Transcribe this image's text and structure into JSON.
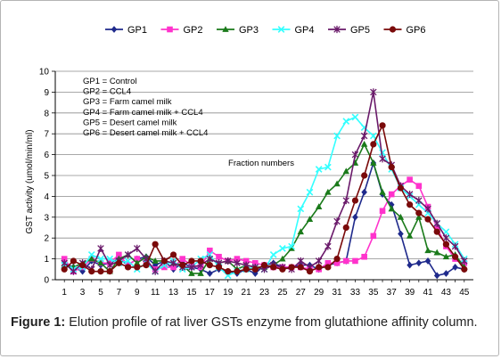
{
  "chart_data": {
    "type": "line",
    "ylabel": "GST activity (umol/min/ml)",
    "xlabel": "Fraction numbers",
    "ylim": [
      0,
      10
    ],
    "yticks": [
      0,
      1,
      2,
      3,
      4,
      5,
      6,
      7,
      8,
      9,
      10
    ],
    "xticks": [
      1,
      3,
      5,
      7,
      9,
      11,
      13,
      15,
      17,
      19,
      21,
      23,
      25,
      27,
      29,
      31,
      33,
      35,
      37,
      39,
      41,
      43,
      45
    ],
    "x": [
      1,
      2,
      3,
      4,
      5,
      6,
      7,
      8,
      9,
      10,
      11,
      12,
      13,
      14,
      15,
      16,
      17,
      18,
      19,
      20,
      21,
      22,
      23,
      24,
      25,
      26,
      27,
      28,
      29,
      30,
      31,
      32,
      33,
      34,
      35,
      36,
      37,
      38,
      39,
      40,
      41,
      42,
      43,
      44,
      45
    ],
    "legend_position": "top",
    "series": [
      {
        "name": "GP1",
        "color": "#1f2a8c",
        "marker": "diamond",
        "values": [
          0.8,
          0.6,
          0.4,
          0.9,
          0.7,
          0.8,
          1.0,
          0.7,
          1.0,
          1.1,
          0.7,
          0.9,
          0.5,
          0.8,
          0.6,
          0.5,
          0.3,
          0.5,
          0.4,
          0.3,
          0.5,
          0.3,
          0.7,
          0.8,
          0.6,
          0.6,
          0.7,
          0.7,
          0.5,
          0.7,
          0.8,
          0.9,
          3.0,
          4.2,
          5.6,
          4.1,
          3.6,
          2.2,
          0.7,
          0.8,
          0.9,
          0.2,
          0.3,
          0.6,
          0.5
        ]
      },
      {
        "name": "GP2",
        "color": "#ff33cc",
        "marker": "square",
        "values": [
          1.0,
          0.4,
          0.6,
          1.0,
          0.8,
          0.8,
          1.2,
          0.7,
          1.0,
          0.9,
          0.5,
          0.6,
          0.6,
          1.0,
          0.7,
          0.6,
          1.4,
          1.1,
          0.9,
          1.0,
          0.9,
          0.8,
          0.7,
          0.6,
          0.6,
          0.6,
          0.6,
          0.5,
          0.5,
          0.8,
          0.8,
          0.9,
          0.9,
          1.1,
          2.1,
          3.3,
          4.1,
          4.5,
          4.8,
          4.5,
          3.5,
          2.5,
          1.6,
          1.0,
          0.8
        ]
      },
      {
        "name": "GP3",
        "color": "#1a7a1a",
        "marker": "triangle",
        "values": [
          0.7,
          0.6,
          0.8,
          1.0,
          0.8,
          0.4,
          1.0,
          1.2,
          0.8,
          1.1,
          0.9,
          0.9,
          0.8,
          0.7,
          0.3,
          0.3,
          1.0,
          0.8,
          0.9,
          0.5,
          0.7,
          0.6,
          0.6,
          0.7,
          1.0,
          1.5,
          2.3,
          2.9,
          3.5,
          4.2,
          4.6,
          5.2,
          5.6,
          6.5,
          5.6,
          4.2,
          3.4,
          3.0,
          2.1,
          3.0,
          1.4,
          1.3,
          1.1,
          1.2,
          0.6
        ]
      },
      {
        "name": "GP4",
        "color": "#33ffff",
        "marker": "x",
        "values": [
          0.7,
          0.5,
          0.6,
          1.2,
          1.0,
          1.0,
          0.8,
          0.9,
          0.5,
          0.8,
          0.4,
          0.7,
          0.9,
          0.5,
          0.6,
          1.0,
          1.2,
          0.6,
          0.2,
          0.4,
          0.5,
          0.6,
          0.5,
          1.2,
          1.5,
          1.6,
          3.4,
          4.2,
          5.3,
          5.4,
          6.9,
          7.6,
          7.8,
          7.3,
          6.9,
          6.1,
          5.3,
          4.4,
          4.0,
          3.6,
          3.2,
          2.7,
          2.3,
          1.7,
          1.0
        ]
      },
      {
        "name": "GP5",
        "color": "#6a1a6a",
        "marker": "asterisk",
        "values": [
          0.8,
          0.4,
          0.8,
          0.5,
          1.5,
          0.7,
          0.9,
          1.2,
          1.5,
          1.0,
          0.4,
          0.9,
          0.8,
          0.6,
          0.6,
          0.7,
          1.0,
          0.8,
          0.9,
          0.8,
          0.7,
          0.6,
          0.5,
          0.7,
          0.6,
          0.5,
          0.9,
          0.6,
          0.9,
          1.6,
          2.8,
          3.8,
          6.0,
          6.9,
          9.0,
          5.8,
          5.5,
          4.5,
          4.1,
          3.8,
          3.4,
          2.7,
          2.0,
          1.6,
          0.9
        ]
      },
      {
        "name": "GP6",
        "color": "#7a0a0a",
        "marker": "circle",
        "values": [
          0.5,
          0.9,
          0.7,
          0.4,
          0.4,
          0.4,
          0.8,
          0.6,
          0.6,
          0.7,
          1.7,
          0.9,
          1.2,
          0.7,
          0.9,
          0.9,
          0.7,
          0.6,
          0.4,
          0.4,
          0.5,
          0.5,
          0.7,
          0.6,
          0.5,
          0.6,
          0.6,
          0.4,
          0.6,
          0.6,
          1.0,
          2.5,
          3.8,
          5.0,
          6.5,
          7.4,
          5.4,
          4.4,
          3.6,
          3.2,
          2.9,
          2.3,
          1.7,
          1.1,
          0.5
        ]
      }
    ],
    "annotations": [
      "GP1 = Control",
      "GP2 = CCL4",
      "GP3 = Farm camel milk",
      "GP4 = Farm camel milk + CCL4",
      "GP5 = Desert camel milk",
      "GP6 = Desert camel milk + CCL4"
    ]
  },
  "caption": {
    "label": "Figure 1:",
    "text": " Elution profile of rat liver GSTs enzyme from glutathione affinity column."
  }
}
